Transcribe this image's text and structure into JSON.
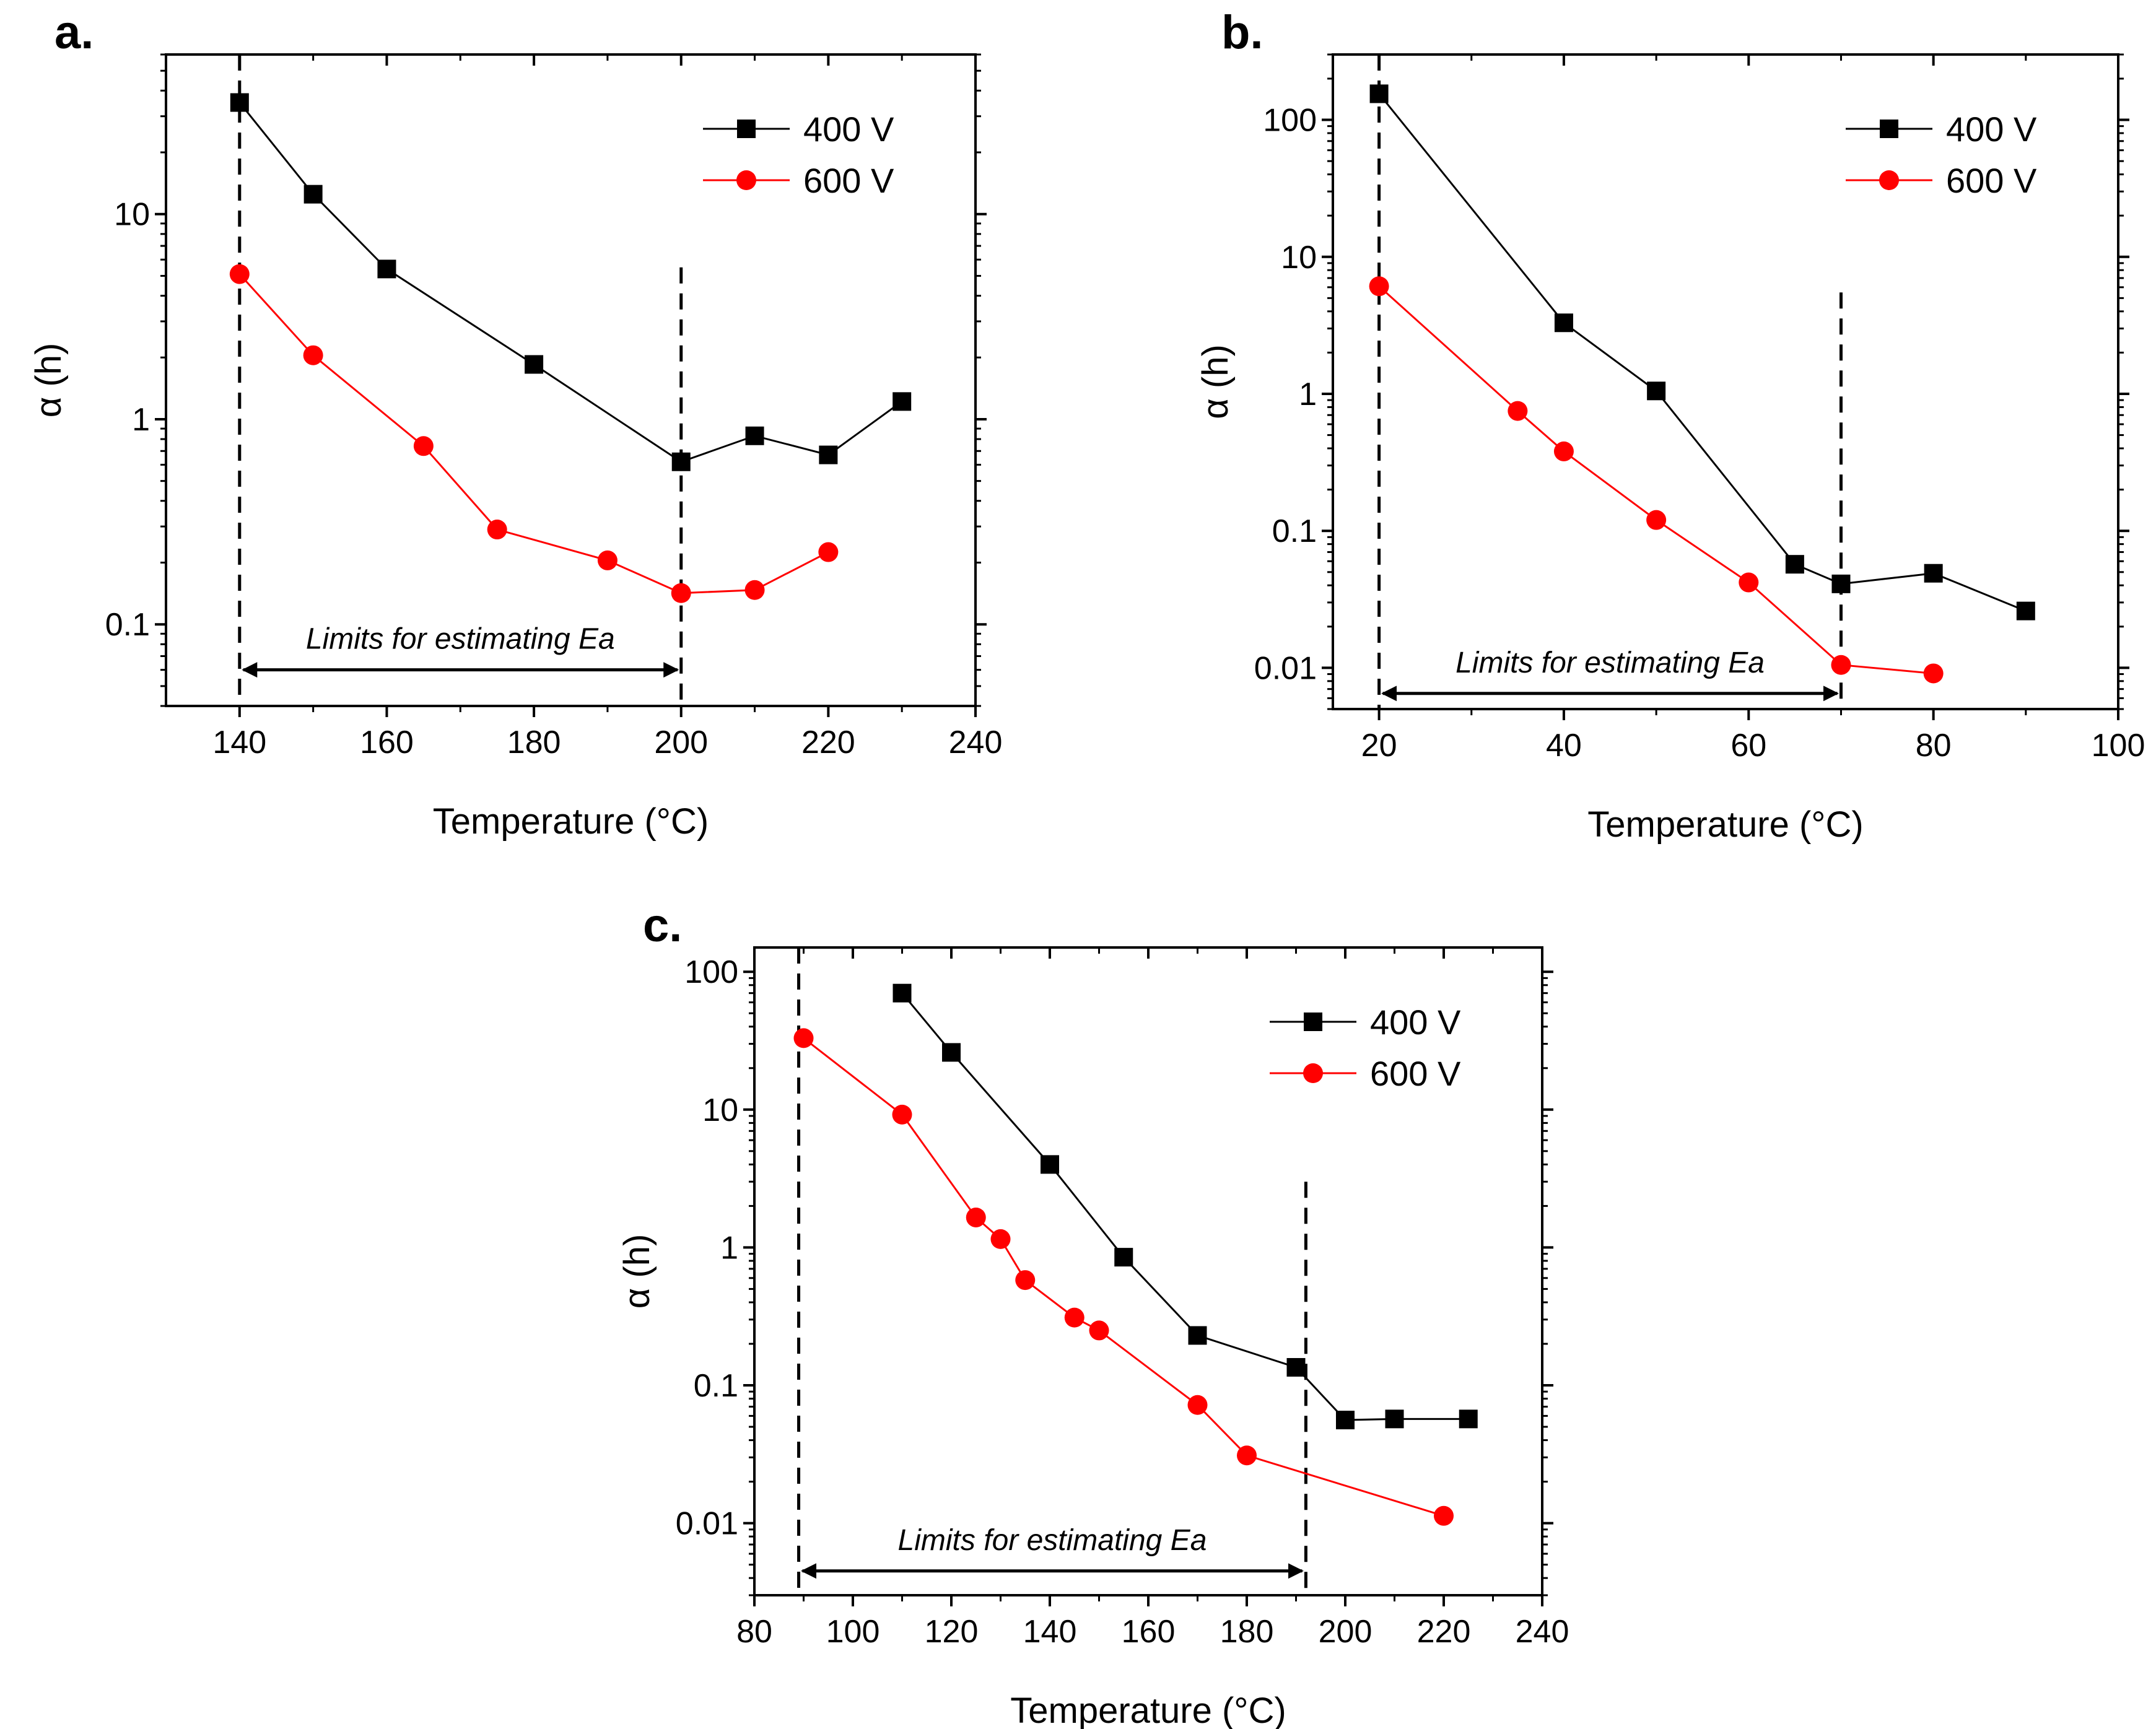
{
  "chart_data": [
    {
      "panel": "a.",
      "type": "line",
      "xlabel": "Temperature (°C)",
      "ylabel": "α (h)",
      "yscale": "log",
      "xlim": [
        130,
        240
      ],
      "ylim": [
        0.04,
        60
      ],
      "xticks": [
        140,
        160,
        180,
        200,
        220,
        240
      ],
      "yticks": [
        0.1,
        1,
        10
      ],
      "ytick_labels": [
        "0.1",
        "1",
        "10"
      ],
      "series": [
        {
          "name": "400 V",
          "color": "#000000",
          "marker": "square",
          "x": [
            140,
            150,
            160,
            180,
            200,
            210,
            220,
            230
          ],
          "y": [
            35,
            12.5,
            5.4,
            1.85,
            0.62,
            0.83,
            0.67,
            1.22
          ]
        },
        {
          "name": "600 V",
          "color": "#ff0000",
          "marker": "circle",
          "x": [
            140,
            150,
            165,
            175,
            190,
            200,
            210,
            220
          ],
          "y": [
            5.1,
            2.05,
            0.74,
            0.29,
            0.205,
            0.142,
            0.147,
            0.225
          ]
        }
      ],
      "legend": [
        "400 V",
        "600 V"
      ],
      "vlines": [
        140,
        200
      ],
      "vline_tops": [
        60,
        5.5
      ],
      "annotation": {
        "text": "Limits for estimating Ea",
        "x_from": 140,
        "x_to": 200,
        "y": 0.06
      }
    },
    {
      "panel": "b.",
      "type": "line",
      "xlabel": "Temperature (°C)",
      "ylabel": "α (h)",
      "yscale": "log",
      "xlim": [
        15,
        100
      ],
      "ylim": [
        0.005,
        300
      ],
      "xticks": [
        20,
        40,
        60,
        80,
        100
      ],
      "yticks": [
        0.01,
        0.1,
        1,
        10,
        100
      ],
      "ytick_labels": [
        "0.01",
        "0.1",
        "1",
        "10",
        "100"
      ],
      "series": [
        {
          "name": "400 V",
          "color": "#000000",
          "marker": "square",
          "x": [
            20,
            40,
            50,
            65,
            70,
            80,
            90
          ],
          "y": [
            155,
            3.3,
            1.05,
            0.057,
            0.041,
            0.049,
            0.026
          ]
        },
        {
          "name": "600 V",
          "color": "#ff0000",
          "marker": "circle",
          "x": [
            20,
            35,
            40,
            50,
            60,
            70,
            80
          ],
          "y": [
            6.1,
            0.75,
            0.38,
            0.12,
            0.042,
            0.0105,
            0.0091
          ]
        }
      ],
      "legend": [
        "400 V",
        "600 V"
      ],
      "vlines": [
        20,
        70
      ],
      "vline_tops": [
        300,
        5.5
      ],
      "annotation": {
        "text": "Limits for estimating Ea",
        "x_from": 20,
        "x_to": 70,
        "y": 0.0065
      }
    },
    {
      "panel": "c.",
      "type": "line",
      "xlabel": "Temperature (°C)",
      "ylabel": "α (h)",
      "yscale": "log",
      "xlim": [
        80,
        240
      ],
      "ylim": [
        0.003,
        150
      ],
      "xticks": [
        80,
        100,
        120,
        140,
        160,
        180,
        200,
        220,
        240
      ],
      "yticks": [
        0.01,
        0.1,
        1,
        10,
        100
      ],
      "ytick_labels": [
        "0.01",
        "0.1",
        "1",
        "10",
        "100"
      ],
      "series": [
        {
          "name": "400 V",
          "color": "#000000",
          "marker": "square",
          "x": [
            110,
            120,
            140,
            155,
            170,
            190,
            200,
            210,
            225
          ],
          "y": [
            70,
            26,
            4.0,
            0.85,
            0.23,
            0.135,
            0.056,
            0.057,
            0.057
          ]
        },
        {
          "name": "600 V",
          "color": "#ff0000",
          "marker": "circle",
          "x": [
            90,
            110,
            125,
            130,
            135,
            145,
            150,
            170,
            180,
            220
          ],
          "y": [
            33,
            9.2,
            1.65,
            1.15,
            0.58,
            0.31,
            0.25,
            0.072,
            0.031,
            0.0113
          ]
        }
      ],
      "legend": [
        "400 V",
        "600 V"
      ],
      "vlines": [
        89,
        192
      ],
      "vline_tops": [
        150,
        3.0
      ],
      "annotation": {
        "text": "Limits for estimating Ea",
        "x_from": 89,
        "x_to": 192,
        "y": 0.0045
      }
    }
  ]
}
